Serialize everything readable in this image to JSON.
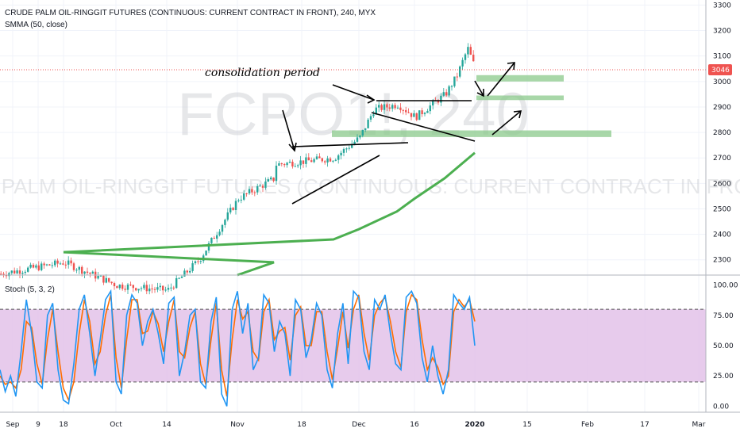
{
  "header": {
    "title": "CRUDE PALM OIL-RINGGIT FUTURES (CONTINUOUS: CURRENT CONTRACT IN FRONT), 240, MYX",
    "indicator": "SMMA (50, close)",
    "stoch_label": "Stoch (5, 3, 2)"
  },
  "watermark": {
    "symbol": "FCPO1!, 240",
    "name": "CRUDE PALM OIL-RINGGIT FUTURES (CONTINUOUS: CURRENT CONTRACT IN FRONT)"
  },
  "colors": {
    "candle_up": "#26a69a",
    "candle_down": "#ef5350",
    "smma": "#4caf50",
    "zone_fill": "#8bc98b",
    "stoch_k": "#2196f3",
    "stoch_d": "#ff6d00",
    "stoch_band": "#e1bee7",
    "price_label_bg": "#ef5350",
    "price_line": "#ef5350"
  },
  "chart_data": [
    {
      "type": "candlestick",
      "title": "CRUDE PALM OIL-RINGGIT FUTURES (CONTINUOUS: CURRENT CONTRACT IN FRONT), 240, MYX",
      "x_ticks": [
        "Sep",
        "9",
        "18",
        "Oct",
        "14",
        "Nov",
        "18",
        "Dec",
        "16",
        "2020",
        "15",
        "Feb",
        "17",
        "Mar"
      ],
      "y_ticks": [
        2300,
        2400,
        2500,
        2600,
        2700,
        2800,
        2900,
        3000,
        3100,
        3200,
        3300
      ],
      "ylim": [
        2240,
        3320
      ],
      "last_price": 3046,
      "last_price_label": "3046",
      "price_path": [
        {
          "date": "Sep",
          "value": 2245
        },
        {
          "date": "18",
          "value": 2290
        },
        {
          "date": "Oct",
          "value": 2200
        },
        {
          "date": "14",
          "value": 2180
        },
        {
          "date": "Oct end",
          "value": 2300
        },
        {
          "date": "Nov",
          "value": 2540
        },
        {
          "date": "Nov 10",
          "value": 2620
        },
        {
          "date": "18",
          "value": 2580
        },
        {
          "date": "Nov 26",
          "value": 2700
        },
        {
          "date": "Dec",
          "value": 2780
        },
        {
          "date": "Dec 5",
          "value": 2890
        },
        {
          "date": "Dec 10",
          "value": 2910
        },
        {
          "date": "16",
          "value": 2860
        },
        {
          "date": "Dec 24",
          "value": 2950
        },
        {
          "date": "Dec 27",
          "value": 3020
        },
        {
          "date": "Dec 30",
          "value": 3130
        },
        {
          "date": "2020",
          "value": 3046
        }
      ],
      "smma_series": {
        "name": "SMMA (50, close)",
        "points": [
          {
            "date": "Nov",
            "value": 2240
          },
          {
            "date": "Nov 10",
            "value": 2290
          },
          {
            "date": "18",
            "value": 2330
          },
          {
            "date": "Nov 26",
            "value": 2380
          },
          {
            "date": "Dec",
            "value": 2420
          },
          {
            "date": "Dec 10",
            "value": 2490
          },
          {
            "date": "16",
            "value": 2540
          },
          {
            "date": "Dec 24",
            "value": 2620
          },
          {
            "date": "2020",
            "value": 2720
          }
        ]
      },
      "zones": [
        {
          "from": "Dec 3",
          "to": "Jan 24",
          "low": 2782,
          "high": 2808
        },
        {
          "from": "Dec 31",
          "to": "Jan 9",
          "low": 2927,
          "high": 2945
        },
        {
          "from": "Dec 31",
          "to": "Jan 9",
          "low": 3000,
          "high": 3025
        }
      ],
      "annotations": [
        {
          "text": "consolidation period"
        }
      ]
    },
    {
      "type": "line",
      "title": "Stoch (5, 3, 2)",
      "y_ticks": [
        "100.00",
        "75.00",
        "50.00",
        "25.00",
        "0.00"
      ],
      "ylim": [
        -5,
        105
      ],
      "bands": [
        20,
        80
      ],
      "series": [
        {
          "name": "%K",
          "values": [
            30,
            12,
            25,
            8,
            45,
            88,
            60,
            20,
            15,
            75,
            85,
            30,
            5,
            2,
            35,
            80,
            92,
            60,
            25,
            55,
            88,
            95,
            20,
            10,
            75,
            92,
            85,
            50,
            70,
            80,
            60,
            35,
            85,
            90,
            25,
            45,
            75,
            80,
            20,
            15,
            70,
            90,
            10,
            0,
            80,
            95,
            60,
            85,
            30,
            40,
            92,
            85,
            45,
            70,
            60,
            25,
            88,
            80,
            40,
            55,
            85,
            75,
            30,
            15,
            60,
            85,
            35,
            95,
            90,
            45,
            30,
            88,
            80,
            92,
            60,
            35,
            30,
            90,
            95,
            85,
            40,
            20,
            50,
            25,
            10,
            30,
            92,
            85,
            80,
            90,
            50
          ]
        },
        {
          "name": "%D",
          "values": [
            25,
            18,
            20,
            15,
            30,
            70,
            65,
            35,
            18,
            55,
            80,
            45,
            15,
            5,
            20,
            60,
            88,
            70,
            35,
            45,
            75,
            92,
            40,
            15,
            55,
            88,
            88,
            60,
            62,
            78,
            68,
            45,
            70,
            88,
            45,
            40,
            65,
            78,
            35,
            18,
            55,
            85,
            30,
            8,
            55,
            88,
            72,
            78,
            45,
            38,
            78,
            88,
            55,
            62,
            65,
            38,
            75,
            82,
            50,
            50,
            78,
            78,
            45,
            22,
            48,
            78,
            48,
            80,
            92,
            60,
            38,
            75,
            85,
            90,
            70,
            45,
            32,
            78,
            92,
            88,
            55,
            30,
            40,
            32,
            18,
            25,
            78,
            88,
            82,
            88,
            70
          ]
        }
      ]
    }
  ]
}
